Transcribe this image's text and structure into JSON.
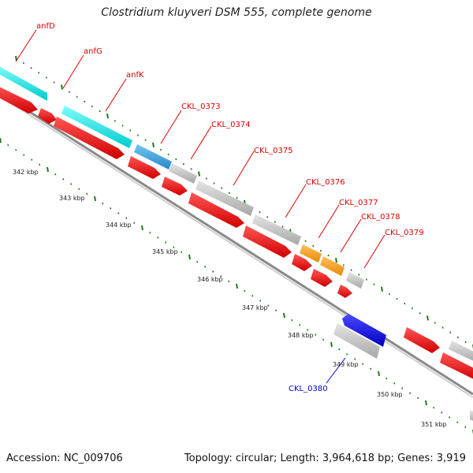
{
  "title": "Clostridium kluyveri DSM 555, complete genome",
  "footer": {
    "accession": "Accession: NC_009706",
    "summary": "Topology: circular; Length: 3,964,618 bp; Genes: 3,919"
  },
  "colors": {
    "forward_cds": "#ff0000",
    "other_gene": "#c0c0c0",
    "nif_gene": "#00eeee",
    "highlight_blue": "#3aa0d8",
    "highlight_orange": "#ff9900",
    "reverse_cds": "#0000ee",
    "label_red": "#dd0000",
    "label_blue": "#0000cc",
    "tick_green": "#1f7a1f",
    "backbone": "#999999"
  },
  "kbp_labels": [
    "342 kbp",
    "343 kbp",
    "344 kbp",
    "345 kbp",
    "346 kbp",
    "347 kbp",
    "348 kbp",
    "349 kbp",
    "350 kbp",
    "351 kbp"
  ],
  "gene_labels": [
    {
      "text": "anfD",
      "color": "label_red"
    },
    {
      "text": "anfG",
      "color": "label_red"
    },
    {
      "text": "anfK",
      "color": "label_red"
    },
    {
      "text": "CKL_0373",
      "color": "label_red"
    },
    {
      "text": "CKL_0374",
      "color": "label_red"
    },
    {
      "text": "CKL_0375",
      "color": "label_red"
    },
    {
      "text": "CKL_0376",
      "color": "label_red"
    },
    {
      "text": "CKL_0377",
      "color": "label_red"
    },
    {
      "text": "CKL_0378",
      "color": "label_red"
    },
    {
      "text": "CKL_0379",
      "color": "label_red"
    },
    {
      "text": "CKL_0380",
      "color": "label_blue"
    }
  ]
}
